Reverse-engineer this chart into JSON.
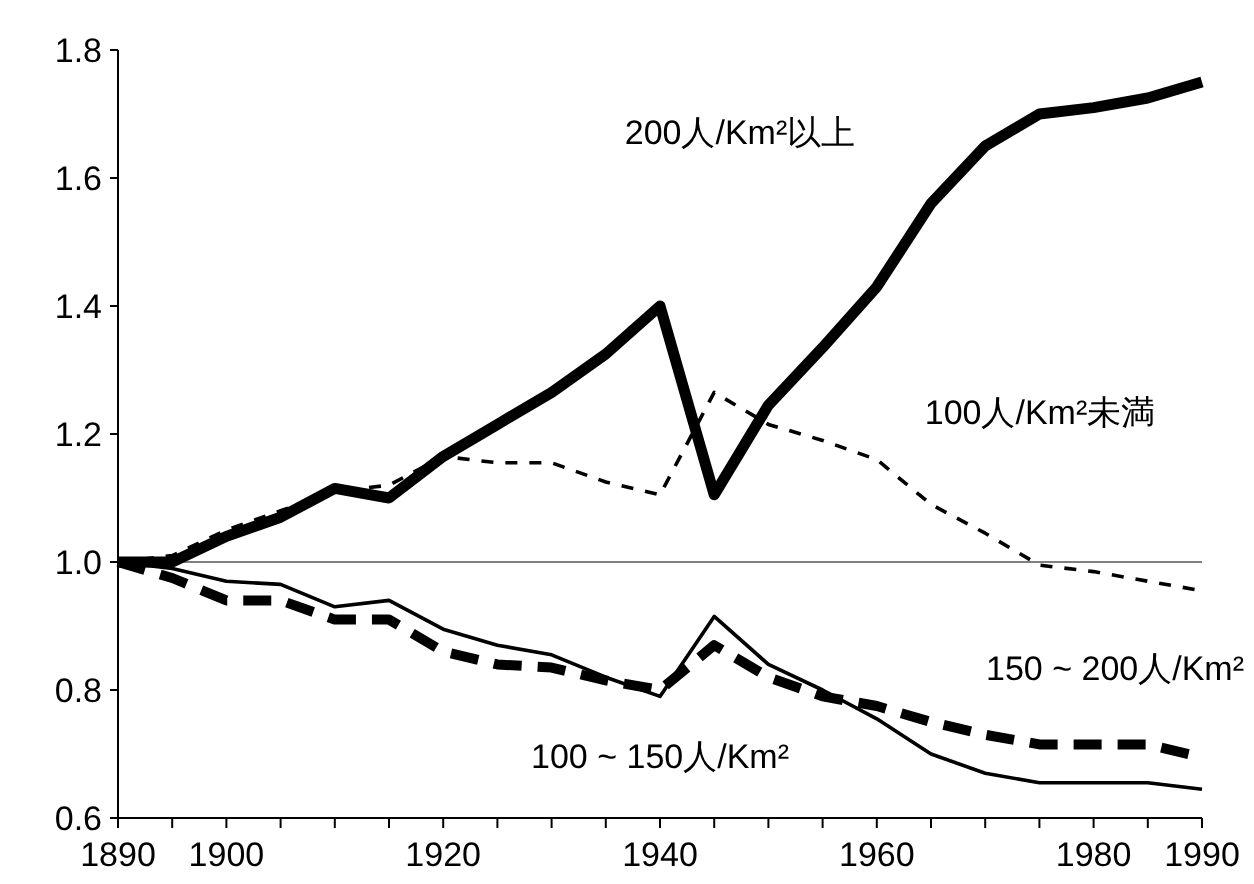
{
  "chart_data": {
    "type": "line",
    "x": [
      1890,
      1895,
      1900,
      1905,
      1910,
      1915,
      1920,
      1925,
      1930,
      1935,
      1940,
      1945,
      1950,
      1955,
      1960,
      1965,
      1970,
      1975,
      1980,
      1985,
      1990
    ],
    "series": [
      {
        "name": "200人/Km²以上",
        "color": "#000000",
        "line_style": "solid",
        "values": [
          1.0,
          1.0,
          1.04,
          1.07,
          1.115,
          1.1,
          1.165,
          1.215,
          1.265,
          1.325,
          1.4,
          1.105,
          1.245,
          1.335,
          1.43,
          1.56,
          1.65,
          1.7,
          1.71,
          1.725,
          1.75
        ]
      },
      {
        "name": "100人/Km²未満",
        "color": "#000000",
        "line_style": "dashed",
        "values": [
          1.0,
          1.01,
          1.05,
          1.08,
          1.11,
          1.12,
          1.165,
          1.155,
          1.155,
          1.125,
          1.105,
          1.265,
          1.215,
          1.19,
          1.16,
          1.09,
          1.045,
          0.995,
          0.985,
          0.97,
          0.955
        ]
      },
      {
        "name": "150 ~ 200人/Km²",
        "color": "#000000",
        "line_style": "dashed",
        "values": [
          1.0,
          0.975,
          0.94,
          0.94,
          0.91,
          0.91,
          0.86,
          0.84,
          0.835,
          0.815,
          0.8,
          0.87,
          0.82,
          0.79,
          0.775,
          0.75,
          0.73,
          0.715,
          0.715,
          0.715,
          0.695
        ]
      },
      {
        "name": "100 ~ 150人/Km²",
        "color": "#000000",
        "line_style": "solid",
        "values": [
          1.0,
          0.99,
          0.97,
          0.965,
          0.93,
          0.94,
          0.895,
          0.87,
          0.855,
          0.82,
          0.79,
          0.915,
          0.84,
          0.8,
          0.755,
          0.7,
          0.67,
          0.655,
          0.655,
          0.655,
          0.645
        ]
      }
    ],
    "xlim": [
      1890,
      1990
    ],
    "xticks": [
      1890,
      {
        "value": 1895,
        "label": null
      },
      1900,
      {
        "value": 1905,
        "label": null
      },
      {
        "value": 1910,
        "label": null
      },
      {
        "value": 1915,
        "label": null
      },
      1920,
      {
        "value": 1925,
        "label": null
      },
      {
        "value": 1930,
        "label": null
      },
      {
        "value": 1935,
        "label": null
      },
      1940,
      {
        "value": 1945,
        "label": null
      },
      {
        "value": 1950,
        "label": null
      },
      {
        "value": 1955,
        "label": null
      },
      1960,
      {
        "value": 1965,
        "label": null
      },
      {
        "value": 1970,
        "label": null
      },
      {
        "value": 1975,
        "label": null
      },
      1980,
      {
        "value": 1985,
        "label": null
      },
      1990
    ],
    "ylim": [
      0.6,
      1.8
    ],
    "yticks": [
      {
        "value": 0.6,
        "label": "0.6"
      },
      {
        "value": 0.8,
        "label": "0.8"
      },
      {
        "value": 1.0,
        "label": "1.0"
      },
      {
        "value": 1.2,
        "label": "1.2"
      },
      {
        "value": 1.4,
        "label": "1.4"
      },
      {
        "value": 1.6,
        "label": "1.6"
      },
      {
        "value": 1.8,
        "label": "1.8"
      }
    ],
    "ref_lines": [
      {
        "axis": "y",
        "value": 1.0,
        "color": "#808080"
      }
    ]
  }
}
